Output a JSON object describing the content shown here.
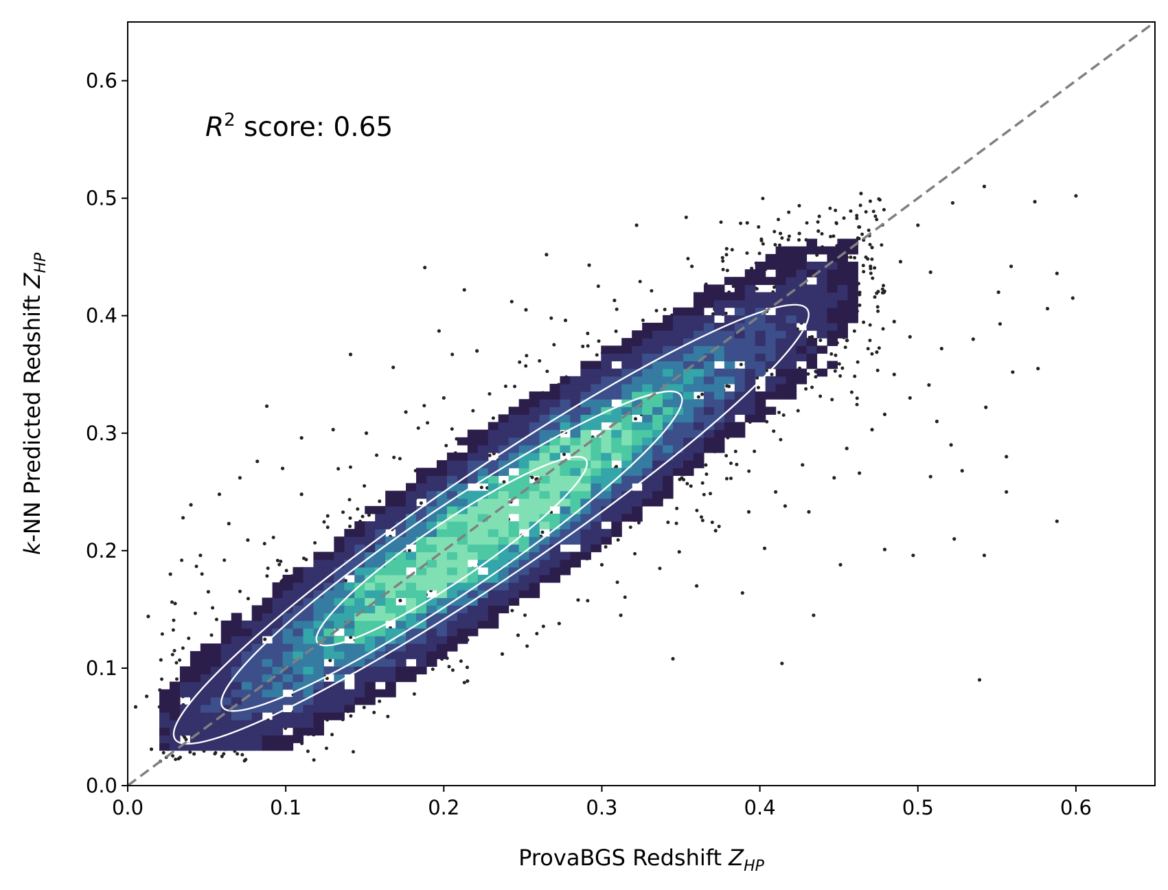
{
  "chart_data": {
    "type": "scatter",
    "xlabel": {
      "prefix": "ProvaBGS Redshift ",
      "var": "Z",
      "sub": "HP"
    },
    "ylabel": {
      "prefix": "k",
      "mid": "-NN Predicted Redshift ",
      "var": "Z",
      "sub": "HP"
    },
    "annotation": {
      "prefix": "R",
      "sup": "2",
      "text": " score: 0.65"
    },
    "xlim": [
      0.0,
      0.65
    ],
    "ylim": [
      0.0,
      0.65
    ],
    "xticks": [
      "0.0",
      "0.1",
      "0.2",
      "0.3",
      "0.4",
      "0.5",
      "0.6"
    ],
    "yticks": [
      "0.0",
      "0.1",
      "0.2",
      "0.3",
      "0.4",
      "0.5",
      "0.6"
    ],
    "grid": false,
    "identity_line": {
      "from": [
        0.0,
        0.0
      ],
      "to": [
        0.65,
        0.65
      ],
      "style": "dashed",
      "color": "#808080"
    },
    "density": {
      "description_values": "2D histogram of k-NN predicted vs ProvaBGS redshift with KDE contours",
      "colormap": [
        "#2c1e4a",
        "#35316a",
        "#3c4f8a",
        "#357ba2",
        "#34a5a8",
        "#4cc8a3",
        "#80e0b4"
      ],
      "center_y_over_x": 0.915,
      "center_offset": 0.012,
      "spread": 0.038,
      "x_range": [
        0.02,
        0.46
      ],
      "bin_size": 0.0065
    },
    "contours": [
      {
        "level": "inner",
        "x_range": [
          0.12,
          0.29
        ],
        "color": "#ffffff"
      },
      {
        "level": "middle",
        "x_range": [
          0.06,
          0.35
        ],
        "color": "#ffffff"
      },
      {
        "level": "outer",
        "x_range": [
          0.03,
          0.43
        ],
        "color": "#ffffff"
      }
    ],
    "outlier_points": [
      [
        0.188,
        0.441
      ],
      [
        0.213,
        0.422
      ],
      [
        0.322,
        0.477
      ],
      [
        0.392,
        0.479
      ],
      [
        0.464,
        0.504
      ],
      [
        0.542,
        0.51
      ],
      [
        0.6,
        0.502
      ],
      [
        0.574,
        0.497
      ],
      [
        0.522,
        0.496
      ],
      [
        0.588,
        0.436
      ],
      [
        0.598,
        0.415
      ],
      [
        0.582,
        0.406
      ],
      [
        0.551,
        0.42
      ],
      [
        0.462,
        0.466
      ],
      [
        0.508,
        0.437
      ],
      [
        0.535,
        0.38
      ],
      [
        0.56,
        0.352
      ],
      [
        0.576,
        0.355
      ],
      [
        0.543,
        0.322
      ],
      [
        0.507,
        0.341
      ],
      [
        0.556,
        0.28
      ],
      [
        0.521,
        0.29
      ],
      [
        0.528,
        0.268
      ],
      [
        0.508,
        0.263
      ],
      [
        0.588,
        0.225
      ],
      [
        0.556,
        0.25
      ],
      [
        0.542,
        0.196
      ],
      [
        0.539,
        0.09
      ],
      [
        0.414,
        0.104
      ],
      [
        0.434,
        0.145
      ],
      [
        0.451,
        0.188
      ],
      [
        0.479,
        0.201
      ],
      [
        0.497,
        0.196
      ],
      [
        0.523,
        0.21
      ],
      [
        0.389,
        0.164
      ],
      [
        0.345,
        0.108
      ],
      [
        0.141,
        0.367
      ],
      [
        0.088,
        0.323
      ],
      [
        0.04,
        0.239
      ],
      [
        0.035,
        0.228
      ],
      [
        0.027,
        0.18
      ],
      [
        0.013,
        0.144
      ],
      [
        0.005,
        0.067
      ],
      [
        0.015,
        0.031
      ],
      [
        0.042,
        0.027
      ],
      [
        0.215,
        0.089
      ],
      [
        0.121,
        0.084
      ],
      [
        0.168,
        0.091
      ],
      [
        0.495,
        0.382
      ],
      [
        0.485,
        0.395
      ],
      [
        0.47,
        0.442
      ],
      [
        0.453,
        0.456
      ],
      [
        0.437,
        0.472
      ],
      [
        0.446,
        0.413
      ],
      [
        0.46,
        0.405
      ],
      [
        0.485,
        0.35
      ],
      [
        0.495,
        0.33
      ],
      [
        0.471,
        0.303
      ],
      [
        0.455,
        0.287
      ],
      [
        0.427,
        0.273
      ],
      [
        0.41,
        0.25
      ],
      [
        0.393,
        0.233
      ],
      [
        0.372,
        0.217
      ],
      [
        0.349,
        0.199
      ],
      [
        0.3,
        0.188
      ],
      [
        0.285,
        0.158
      ],
      [
        0.247,
        0.128
      ],
      [
        0.215,
        0.124
      ],
      [
        0.19,
        0.117
      ],
      [
        0.265,
        0.452
      ],
      [
        0.292,
        0.443
      ],
      [
        0.243,
        0.412
      ],
      [
        0.252,
        0.405
      ],
      [
        0.197,
        0.387
      ],
      [
        0.168,
        0.356
      ],
      [
        0.13,
        0.303
      ],
      [
        0.11,
        0.296
      ],
      [
        0.082,
        0.276
      ],
      [
        0.071,
        0.262
      ],
      [
        0.058,
        0.248
      ],
      [
        0.064,
        0.223
      ],
      [
        0.076,
        0.209
      ],
      [
        0.046,
        0.196
      ],
      [
        0.051,
        0.165
      ],
      [
        0.03,
        0.155
      ],
      [
        0.021,
        0.107
      ],
      [
        0.034,
        0.092
      ],
      [
        0.012,
        0.076
      ],
      [
        0.552,
        0.393
      ],
      [
        0.559,
        0.442
      ],
      [
        0.471,
        0.458
      ],
      [
        0.5,
        0.477
      ],
      [
        0.489,
        0.446
      ],
      [
        0.433,
        0.382
      ],
      [
        0.474,
        0.369
      ],
      [
        0.515,
        0.372
      ],
      [
        0.479,
        0.316
      ],
      [
        0.512,
        0.31
      ],
      [
        0.447,
        0.262
      ],
      [
        0.463,
        0.266
      ],
      [
        0.431,
        0.233
      ],
      [
        0.416,
        0.238
      ],
      [
        0.403,
        0.202
      ],
      [
        0.36,
        0.17
      ],
      [
        0.312,
        0.145
      ],
      [
        0.273,
        0.138
      ],
      [
        0.237,
        0.112
      ],
      [
        0.11,
        0.248
      ],
      [
        0.098,
        0.27
      ],
      [
        0.151,
        0.3
      ],
      [
        0.176,
        0.318
      ],
      [
        0.2,
        0.33
      ],
      [
        0.221,
        0.37
      ],
      [
        0.277,
        0.396
      ],
      [
        0.308,
        0.413
      ],
      [
        0.357,
        0.442
      ],
      [
        0.379,
        0.457
      ],
      [
        0.413,
        0.47
      ],
      [
        0.425,
        0.47
      ]
    ]
  }
}
